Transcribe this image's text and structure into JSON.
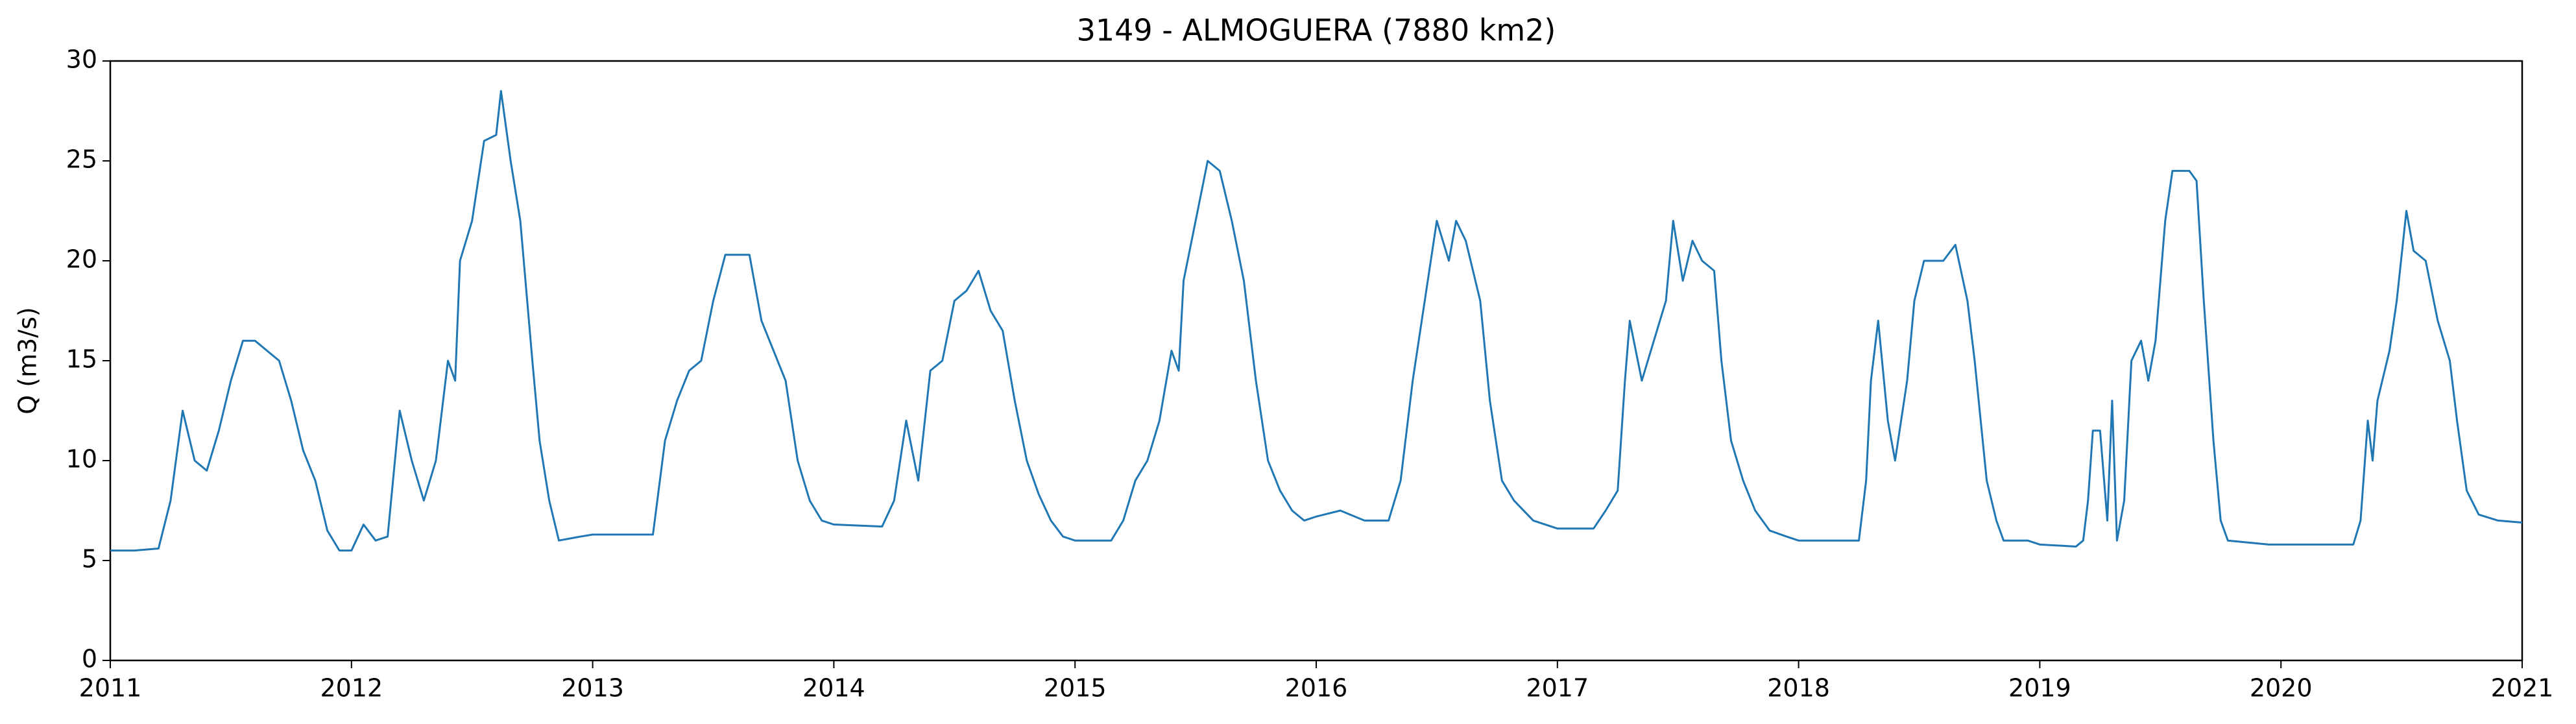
{
  "chart_data": {
    "type": "line",
    "title": "3149 - ALMOGUERA (7880 km2)",
    "y_label": "Q (m3/s)",
    "xlim": [
      2011,
      2021
    ],
    "xticks": [
      2011,
      2012,
      2013,
      2014,
      2015,
      2016,
      2017,
      2018,
      2019,
      2020,
      2021
    ],
    "ylim": [
      0,
      30
    ],
    "yticks": [
      0,
      5,
      10,
      15,
      20,
      25,
      30
    ],
    "grid": false,
    "series": [
      {
        "name": "Q",
        "color": "#1f77b4",
        "x": [
          2011.0,
          2011.1,
          2011.2,
          2011.25,
          2011.3,
          2011.35,
          2011.4,
          2011.45,
          2011.5,
          2011.55,
          2011.6,
          2011.65,
          2011.7,
          2011.75,
          2011.8,
          2011.85,
          2011.9,
          2011.95,
          2012.0,
          2012.05,
          2012.1,
          2012.15,
          2012.2,
          2012.25,
          2012.3,
          2012.35,
          2012.4,
          2012.43,
          2012.45,
          2012.5,
          2012.55,
          2012.6,
          2012.62,
          2012.66,
          2012.7,
          2012.75,
          2012.78,
          2012.82,
          2012.86,
          2012.95,
          2013.0,
          2013.1,
          2013.2,
          2013.25,
          2013.3,
          2013.35,
          2013.4,
          2013.45,
          2013.5,
          2013.55,
          2013.6,
          2013.65,
          2013.7,
          2013.75,
          2013.8,
          2013.85,
          2013.9,
          2013.95,
          2014.0,
          2014.2,
          2014.25,
          2014.3,
          2014.35,
          2014.4,
          2014.45,
          2014.5,
          2014.55,
          2014.6,
          2014.65,
          2014.7,
          2014.75,
          2014.8,
          2014.85,
          2014.9,
          2014.95,
          2015.0,
          2015.15,
          2015.2,
          2015.25,
          2015.3,
          2015.35,
          2015.4,
          2015.43,
          2015.45,
          2015.5,
          2015.55,
          2015.6,
          2015.65,
          2015.7,
          2015.75,
          2015.8,
          2015.85,
          2015.9,
          2015.95,
          2016.0,
          2016.1,
          2016.2,
          2016.3,
          2016.35,
          2016.4,
          2016.45,
          2016.5,
          2016.55,
          2016.58,
          2016.62,
          2016.68,
          2016.72,
          2016.77,
          2016.82,
          2016.9,
          2016.95,
          2017.0,
          2017.15,
          2017.2,
          2017.25,
          2017.28,
          2017.3,
          2017.35,
          2017.4,
          2017.45,
          2017.48,
          2017.52,
          2017.56,
          2017.6,
          2017.65,
          2017.68,
          2017.72,
          2017.77,
          2017.82,
          2017.88,
          2017.95,
          2018.0,
          2018.25,
          2018.28,
          2018.3,
          2018.33,
          2018.37,
          2018.4,
          2018.45,
          2018.48,
          2018.52,
          2018.6,
          2018.65,
          2018.7,
          2018.73,
          2018.78,
          2018.82,
          2018.85,
          2018.95,
          2019.0,
          2019.15,
          2019.18,
          2019.2,
          2019.22,
          2019.25,
          2019.28,
          2019.3,
          2019.32,
          2019.35,
          2019.38,
          2019.42,
          2019.45,
          2019.48,
          2019.52,
          2019.55,
          2019.62,
          2019.65,
          2019.68,
          2019.72,
          2019.75,
          2019.78,
          2019.95,
          2020.0,
          2020.3,
          2020.33,
          2020.36,
          2020.38,
          2020.4,
          2020.45,
          2020.48,
          2020.52,
          2020.55,
          2020.6,
          2020.65,
          2020.7,
          2020.73,
          2020.77,
          2020.82,
          2020.9,
          2021.0
        ],
        "values": [
          5.5,
          5.5,
          5.6,
          8,
          12.5,
          10,
          9.5,
          11.5,
          14,
          16,
          16,
          15.5,
          15,
          13,
          10.5,
          9,
          6.5,
          5.5,
          5.5,
          6.8,
          6,
          6.2,
          12.5,
          10,
          8,
          10,
          15,
          14,
          20,
          22,
          26,
          26.3,
          28.5,
          25,
          22,
          15,
          11,
          8,
          6,
          6.2,
          6.3,
          6.3,
          6.3,
          6.3,
          11,
          13,
          14.5,
          15,
          18,
          20.3,
          20.3,
          20.3,
          17,
          15.5,
          14,
          10,
          8,
          7,
          6.8,
          6.7,
          8,
          12,
          9,
          14.5,
          15,
          18,
          18.5,
          19.5,
          17.5,
          16.5,
          13,
          10,
          8.3,
          7,
          6.2,
          6,
          6,
          7,
          9,
          10,
          12,
          15.5,
          14.5,
          19,
          22,
          25,
          24.5,
          22,
          19,
          14,
          10,
          8.5,
          7.5,
          7,
          7.2,
          7.5,
          7,
          7,
          9,
          14,
          18,
          22,
          20,
          22,
          21,
          18,
          13,
          9,
          8,
          7,
          6.8,
          6.6,
          6.6,
          7.5,
          8.5,
          14,
          17,
          14,
          16,
          18,
          22,
          19,
          21,
          20,
          19.5,
          15,
          11,
          9,
          7.5,
          6.5,
          6.2,
          6,
          6,
          9,
          14,
          17,
          12,
          10,
          14,
          18,
          20,
          20,
          20.8,
          18,
          15,
          9,
          7,
          6,
          6,
          5.8,
          5.7,
          6,
          8,
          11.5,
          11.5,
          7,
          13,
          6,
          8,
          15,
          16,
          14,
          16,
          22,
          24.5,
          24.5,
          24,
          18,
          11,
          7,
          6,
          5.8,
          5.8,
          5.8,
          7,
          12,
          10,
          13,
          15.5,
          18,
          22.5,
          20.5,
          20,
          17,
          15,
          12,
          8.5,
          7.3,
          7,
          6.9
        ]
      }
    ]
  }
}
